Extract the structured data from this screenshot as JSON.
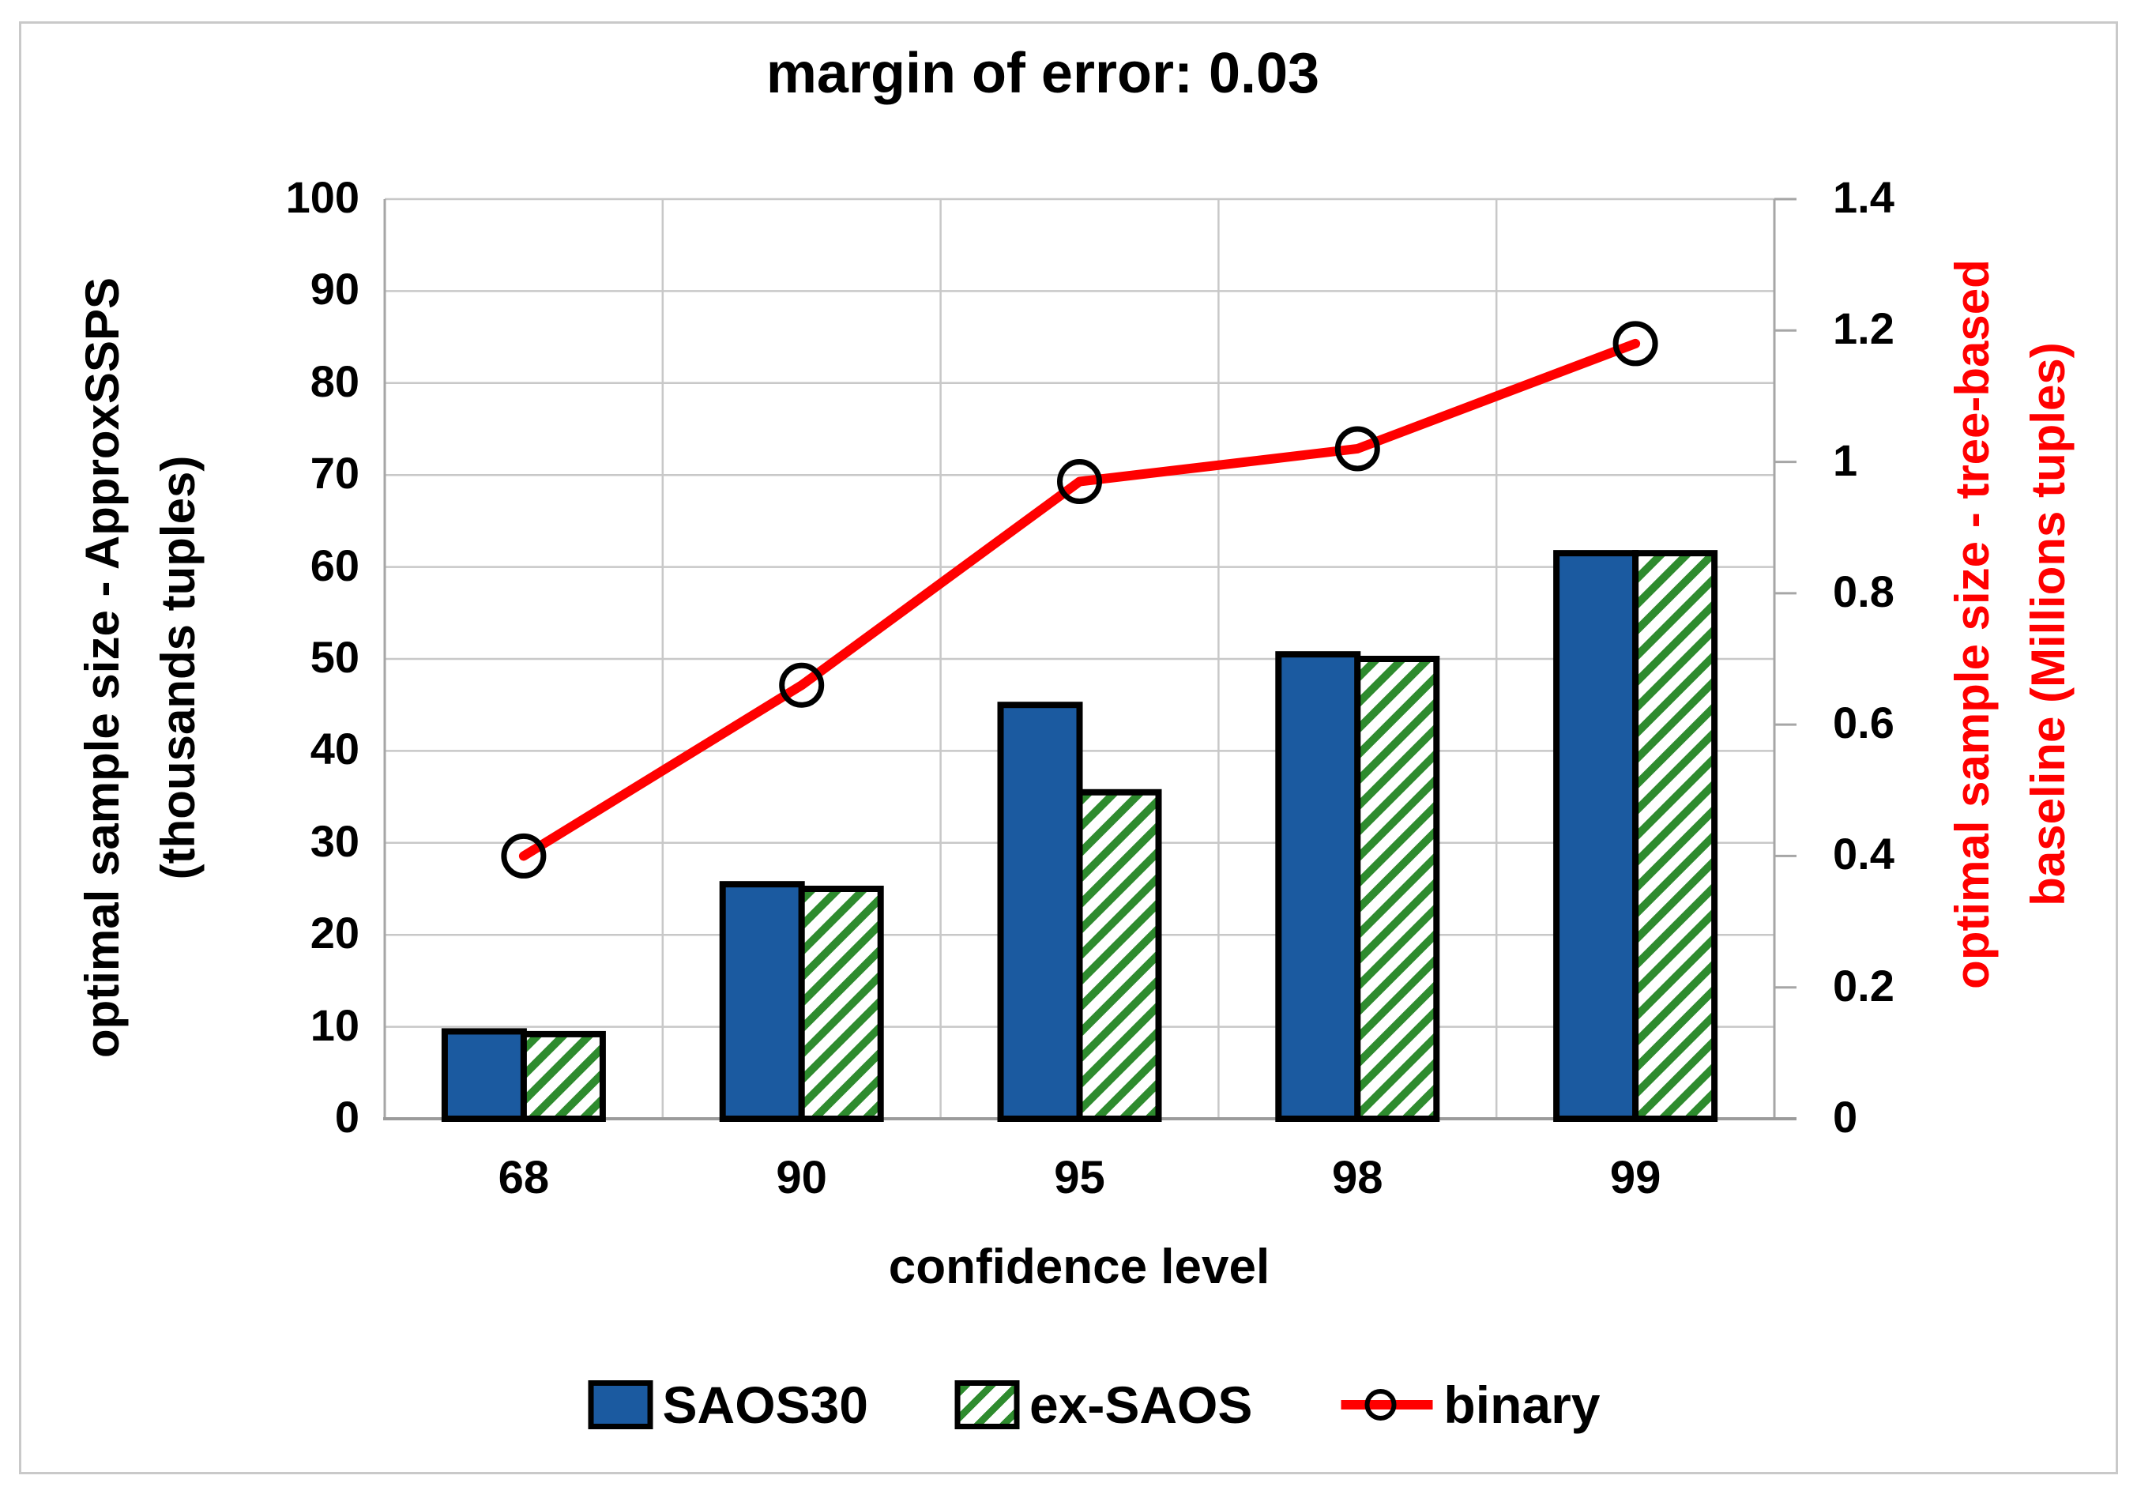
{
  "title": "margin of error: 0.03",
  "chart_data": {
    "type": "bar+line",
    "title": "margin of error: 0.03",
    "categories": [
      "68",
      "90",
      "95",
      "98",
      "99"
    ],
    "series": [
      {
        "name": "SAOS30",
        "type": "bar",
        "axis": "left",
        "style": "solid",
        "color": "#1b5aa0",
        "values": [
          9.5,
          25.5,
          45,
          50.5,
          61.5
        ]
      },
      {
        "name": "ex-SAOS",
        "type": "bar",
        "axis": "left",
        "style": "hatched",
        "color": "#2e8b2e",
        "values": [
          9.2,
          25,
          35.5,
          50,
          61.5
        ]
      },
      {
        "name": "binary",
        "type": "line",
        "axis": "right",
        "style": "open-circle-marker",
        "color": "#ff0000",
        "values": [
          0.4,
          0.66,
          0.97,
          1.02,
          1.18
        ]
      }
    ],
    "x_axis": {
      "label": "confidence level"
    },
    "left_axis": {
      "label_line1": "optimal sample size - ApproxSSPS",
      "label_line2": "(thousands tuples)",
      "min": 0,
      "max": 100,
      "step": 10,
      "ticks": [
        "0",
        "10",
        "20",
        "30",
        "40",
        "50",
        "60",
        "70",
        "80",
        "90",
        "100"
      ],
      "label_color": "#000000"
    },
    "right_axis": {
      "label_line1": "optimal sample size - tree-based",
      "label_line2": "baseline (Millions tuples)",
      "min": 0,
      "max": 1.4,
      "step": 0.2,
      "ticks": [
        "0",
        "0.2",
        "0.4",
        "0.6",
        "0.8",
        "1",
        "1.2",
        "1.4"
      ],
      "label_color": "#ff0000"
    },
    "legend_labels": [
      "SAOS30",
      "ex-SAOS",
      "binary"
    ],
    "grid": "on",
    "legend_position": "bottom",
    "colors": {
      "gridline": "#c8c8c8",
      "axis_line": "#a6a6a6",
      "bar_outline": "#000000",
      "marker_outline": "#000000"
    }
  }
}
